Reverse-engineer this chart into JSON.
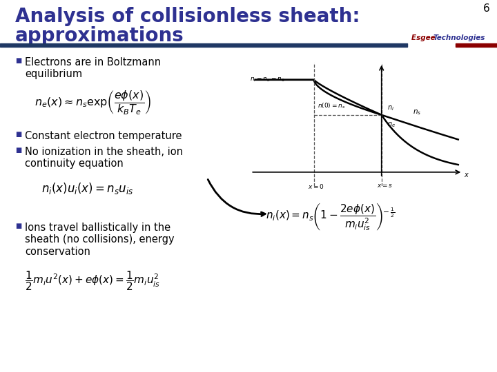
{
  "title_line1": "Analysis of collisionless sheath:",
  "title_line2": "approximations",
  "title_color": "#2E3191",
  "title_fontsize": 20,
  "slide_bg": "#FFFFFF",
  "bar_color": "#1F3864",
  "bar_color2": "#8B0000",
  "brand_text": "Esgee Technologies",
  "brand_color_esgee": "#8B0000",
  "brand_color_tech": "#2E3191",
  "page_number": "6",
  "bullet_color": "#2E3191",
  "bullet_fontsize": 10.5,
  "bullets": [
    "Electrons are in Boltzmann\nequilibrium",
    "Constant electron temperature",
    "No ionization in the sheath, ion\ncontinuity equation",
    "Ions travel ballistically in the\nsheath (no collisions), energy\nconservation"
  ],
  "eq1": "$n_e(x) \\approx n_s \\exp\\!\\left(\\dfrac{e\\phi(x)}{k_B T_e}\\right)$",
  "eq2": "$n_i(x)u_i(x) = n_s u_{is}$",
  "eq3": "$\\dfrac{1}{2}m_i u^2(x) + e\\phi(x) = \\dfrac{1}{2}m_i u_{is}^2$",
  "eq4": "$n_i(x) = n_s \\left(1 - \\dfrac{2e\\phi(x)}{m_i u_{is}^2}\\right)^{\\!-\\frac{1}{2}}$"
}
